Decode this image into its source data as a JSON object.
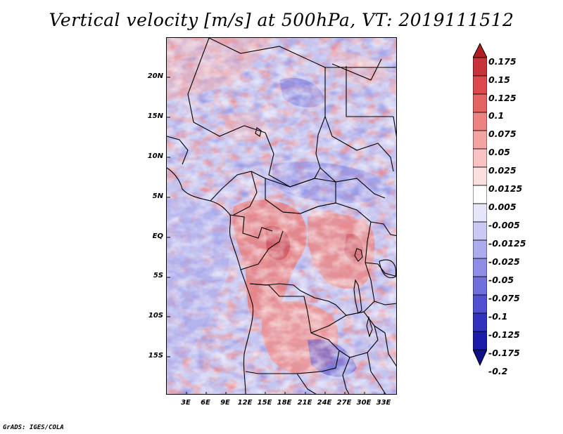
{
  "title": "Vertical velocity [m/s] at 500hPa, VT: 2019111512",
  "credit": "GrADS: IGES/COLA",
  "map": {
    "lat_labels": [
      "20N",
      "15N",
      "10N",
      "5N",
      "EQ",
      "5S",
      "10S",
      "15S"
    ],
    "lon_labels": [
      "3E",
      "6E",
      "9E",
      "12E",
      "15E",
      "18E",
      "21E",
      "24E",
      "27E",
      "30E",
      "33E"
    ]
  },
  "colorbar": {
    "levels": [
      "0.175",
      "0.15",
      "0.125",
      "0.1",
      "0.075",
      "0.05",
      "0.025",
      "0.0125",
      "0.005",
      "-0.005",
      "-0.0125",
      "-0.025",
      "-0.05",
      "-0.075",
      "-0.1",
      "-0.125",
      "-0.175",
      "-0.2"
    ],
    "colors": [
      "#b01e23",
      "#c8323a",
      "#dc4a4f",
      "#e46464",
      "#ec8282",
      "#f4a3a3",
      "#f8c3c3",
      "#fce0e0",
      "#ffffff",
      "#e6e6fa",
      "#c9c9f4",
      "#ababee",
      "#8e8ee6",
      "#7070dc",
      "#5050d0",
      "#3232be",
      "#1c1caa",
      "#0f0f8c"
    ]
  }
}
